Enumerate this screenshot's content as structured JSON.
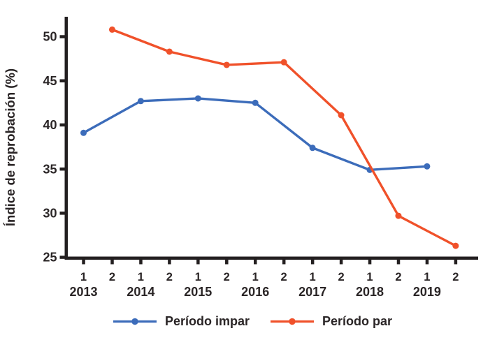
{
  "chart_data": {
    "type": "line",
    "title": "",
    "xlabel": "",
    "ylabel": "Índice de reprobación (%)",
    "ylim": [
      25,
      52.5
    ],
    "yticks": [
      25,
      30,
      35,
      40,
      45,
      50
    ],
    "x_period_labels": [
      "1",
      "2",
      "1",
      "2",
      "1",
      "2",
      "1",
      "2",
      "1",
      "2",
      "1",
      "2",
      "1",
      "2"
    ],
    "years": [
      "2013",
      "2014",
      "2015",
      "2016",
      "2017",
      "2018",
      "2019"
    ],
    "series": [
      {
        "name": "Período impar",
        "color": "#3c6cba",
        "x_indices": [
          0,
          2,
          4,
          6,
          8,
          10,
          12
        ],
        "values": [
          39.1,
          42.7,
          43.0,
          42.5,
          37.4,
          34.9,
          35.3
        ]
      },
      {
        "name": "Período par",
        "color": "#f0512a",
        "x_indices": [
          1,
          3,
          5,
          7,
          9,
          11,
          13
        ],
        "values": [
          50.8,
          48.3,
          46.8,
          47.1,
          41.1,
          29.7,
          26.3
        ]
      }
    ],
    "legend_position": "bottom",
    "grid": false,
    "axis_color": "#231f20",
    "text_color": "#2a2526"
  }
}
